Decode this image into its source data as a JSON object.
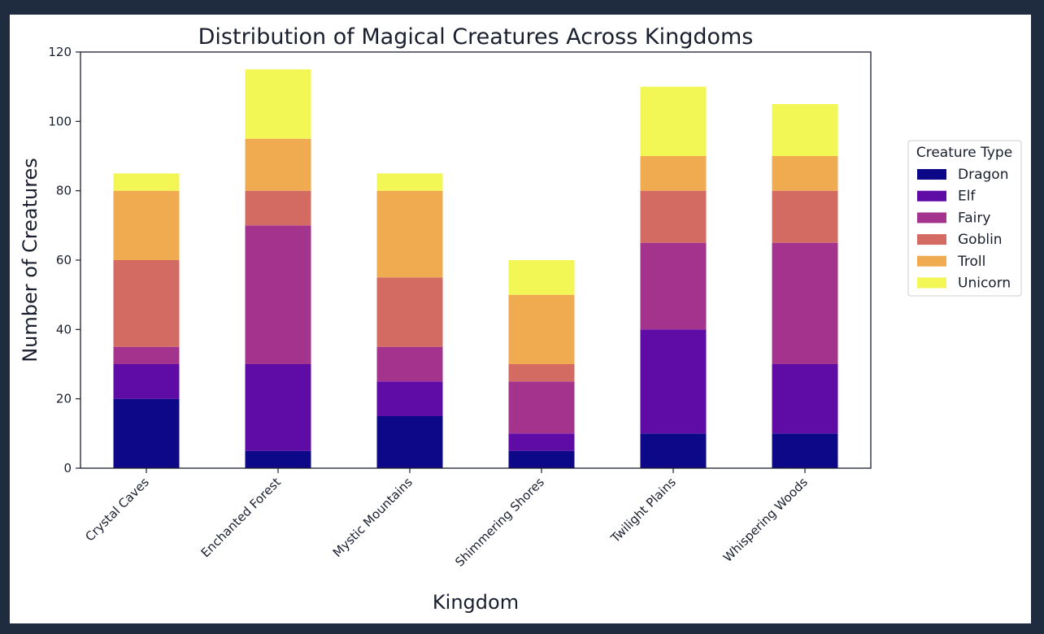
{
  "chart_data": {
    "type": "bar",
    "stacked": true,
    "title": "Distribution of Magical Creatures Across Kingdoms",
    "xlabel": "Kingdom",
    "ylabel": "Number of Creatures",
    "ylim": [
      0,
      120
    ],
    "yticks": [
      0,
      20,
      40,
      60,
      80,
      100,
      120
    ],
    "categories": [
      "Crystal Caves",
      "Enchanted Forest",
      "Mystic Mountains",
      "Shimmering Shores",
      "Twilight Plains",
      "Whispering Woods"
    ],
    "series": [
      {
        "name": "Dragon",
        "color": "#0d0887",
        "values": [
          20,
          5,
          15,
          5,
          10,
          10
        ]
      },
      {
        "name": "Elf",
        "color": "#5f0ba6",
        "values": [
          10,
          25,
          10,
          5,
          30,
          20
        ]
      },
      {
        "name": "Fairy",
        "color": "#a3338d",
        "values": [
          5,
          40,
          10,
          15,
          25,
          35
        ]
      },
      {
        "name": "Goblin",
        "color": "#d36b63",
        "values": [
          25,
          10,
          20,
          5,
          15,
          15
        ]
      },
      {
        "name": "Troll",
        "color": "#f0aa50",
        "values": [
          20,
          15,
          25,
          20,
          10,
          10
        ]
      },
      {
        "name": "Unicorn",
        "color": "#f2f755",
        "values": [
          5,
          20,
          5,
          10,
          20,
          15
        ]
      }
    ],
    "legend": {
      "title": "Creature Type",
      "placement": "right"
    },
    "grid": false
  }
}
